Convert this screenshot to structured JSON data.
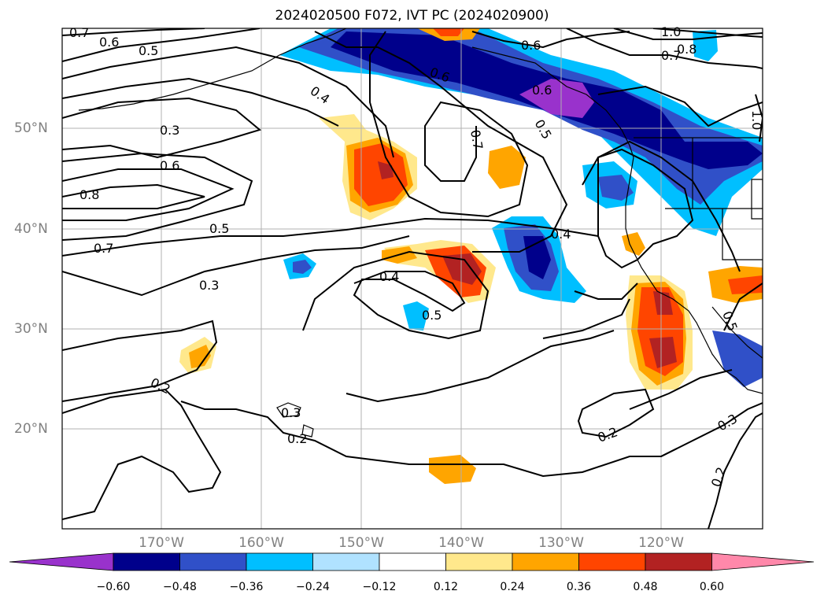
{
  "title": "2024020500 F072, IVT PC (2024020900)",
  "lat_labels": [
    "50°N",
    "40°N",
    "30°N",
    "20°N"
  ],
  "lon_labels": [
    "170°W",
    "160°W",
    "150°W",
    "140°W",
    "130°W",
    "120°W"
  ],
  "colorbar": {
    "ticks": [
      "−0.60",
      "−0.48",
      "−0.36",
      "−0.24",
      "−0.12",
      "0.12",
      "0.24",
      "0.36",
      "0.48",
      "0.60"
    ],
    "colors": [
      "#9932cc",
      "#00008b",
      "#3050c8",
      "#00bfff",
      "#b0e2ff",
      "#ffffff",
      "#ffe88c",
      "#ffa500",
      "#ff4500",
      "#b22222",
      "#ff88aa"
    ]
  },
  "contour_labels": [
    "0.7",
    "0.6",
    "0.5",
    "0.4",
    "0.3",
    "0.6",
    "0.8",
    "0.5",
    "0.7",
    "0.3",
    "0.4",
    "0.5",
    "0.2",
    "0.3",
    "0.2",
    "0.6",
    "0.6",
    "0.7",
    "0.5",
    "0.4",
    "1.0",
    "0.8",
    "0.7",
    "0.6",
    "1.0",
    "0.2",
    "0.3",
    "0.2",
    "0.5"
  ]
}
